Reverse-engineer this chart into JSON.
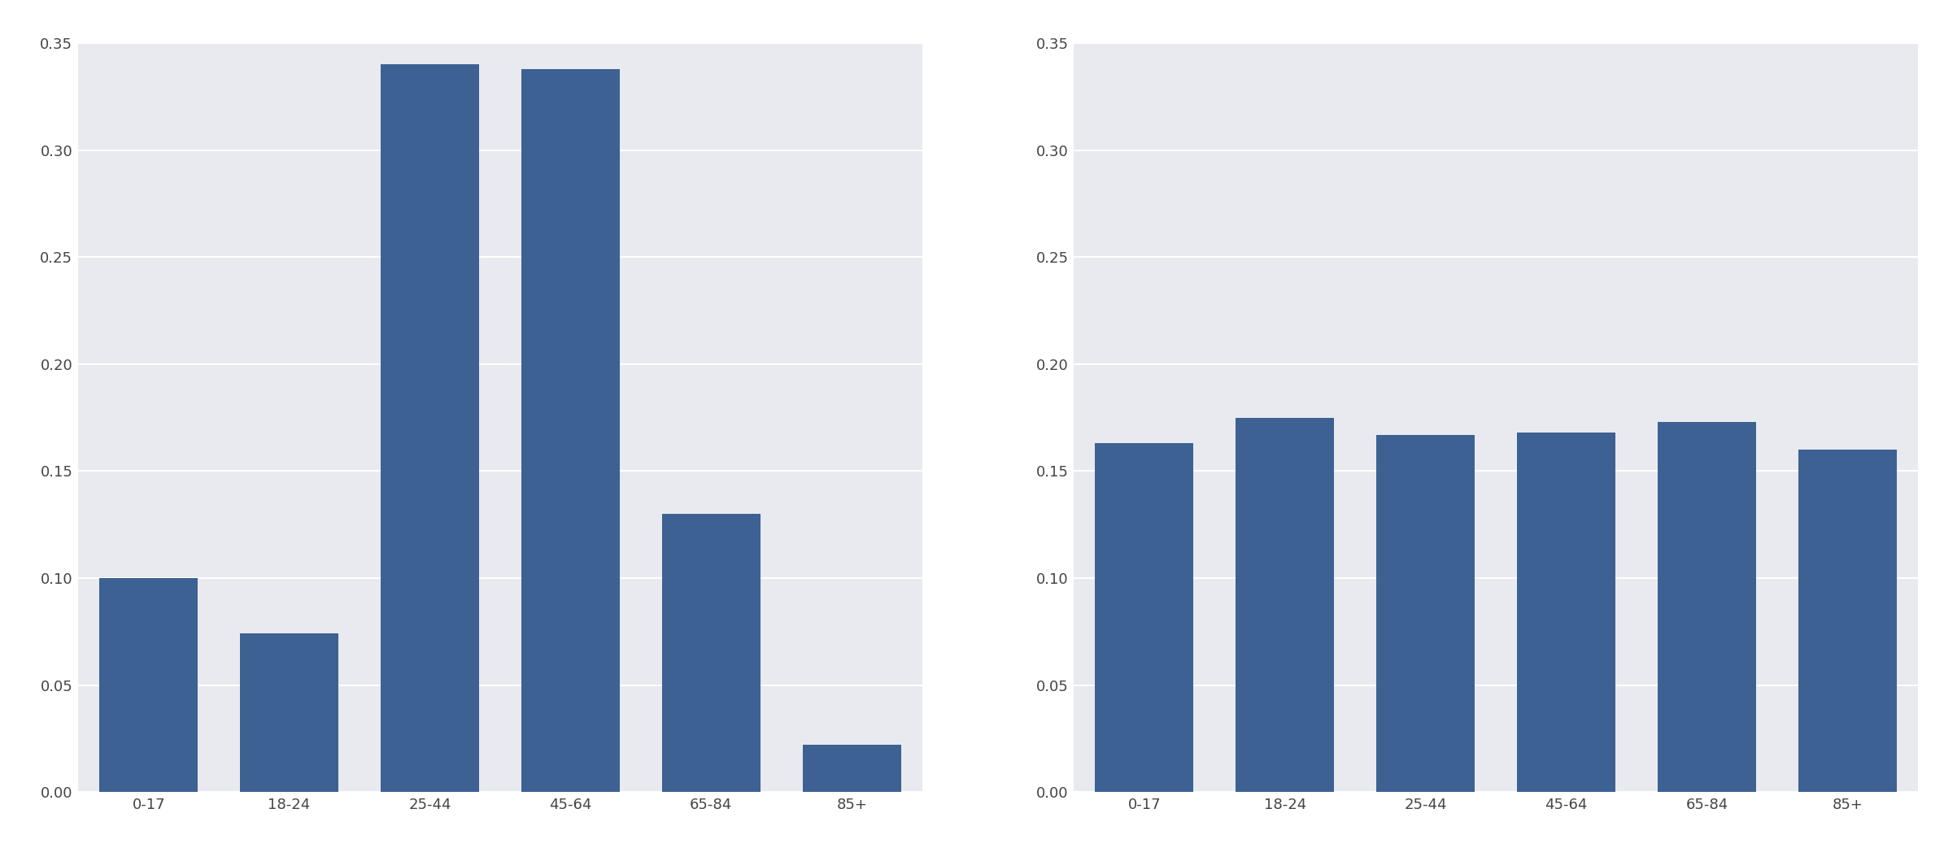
{
  "left_categories": [
    "0-17",
    "18-24",
    "25-44",
    "45-64",
    "65-84",
    "85+"
  ],
  "left_values": [
    0.1,
    0.074,
    0.34,
    0.338,
    0.13,
    0.022
  ],
  "right_categories": [
    "0-17",
    "18-24",
    "25-44",
    "45-64",
    "65-84",
    "85+"
  ],
  "right_values": [
    0.163,
    0.175,
    0.167,
    0.168,
    0.173,
    0.16
  ],
  "bar_color": "#3d6192",
  "axes_background_color": "#e8eaf0",
  "figure_background_color": "#ffffff",
  "ylim": [
    0.0,
    0.35
  ],
  "yticks": [
    0.0,
    0.05,
    0.1,
    0.15,
    0.2,
    0.25,
    0.3,
    0.35
  ],
  "grid_color": "#ffffff",
  "tick_color": "#444444",
  "bar_width": 0.7,
  "tick_fontsize": 13
}
